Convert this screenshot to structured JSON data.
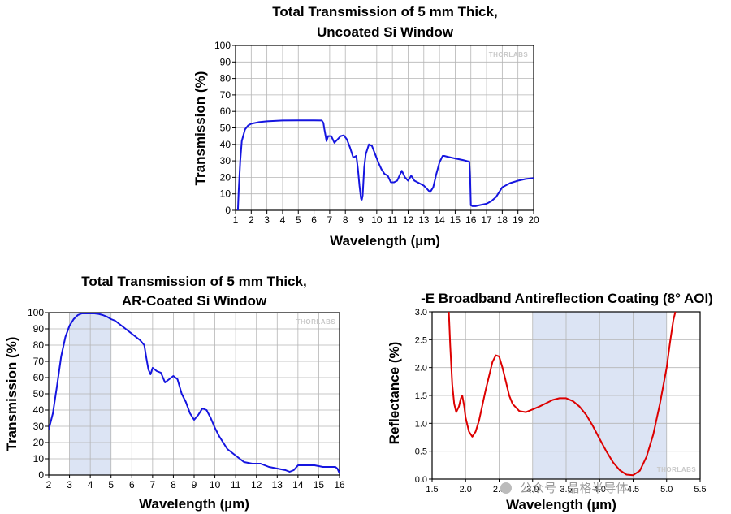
{
  "chart_data": [
    {
      "id": "c1",
      "type": "line",
      "title_lines": [
        "Total Transmission of 5 mm Thick,",
        "Uncoated Si Window"
      ],
      "xlabel": "Wavelength (µm)",
      "ylabel": "Transmission (%)",
      "xlim": [
        1,
        20
      ],
      "ylim": [
        0,
        100
      ],
      "xticks": [
        1,
        2,
        3,
        4,
        5,
        6,
        7,
        8,
        9,
        10,
        11,
        12,
        13,
        14,
        15,
        16,
        17,
        18,
        19,
        20
      ],
      "yticks": [
        0,
        10,
        20,
        30,
        40,
        50,
        60,
        70,
        80,
        90,
        100
      ],
      "grid": true,
      "watermark": "THORLABS",
      "series": [
        {
          "name": "Uncoated Si",
          "color": "#1515e0",
          "x": [
            1.1,
            1.15,
            1.2,
            1.3,
            1.4,
            1.6,
            1.8,
            2.0,
            2.5,
            3,
            4,
            5,
            6,
            6.5,
            6.6,
            6.65,
            6.8,
            6.9,
            7.1,
            7.3,
            7.5,
            7.7,
            7.9,
            8.1,
            8.3,
            8.5,
            8.7,
            8.8,
            8.9,
            9.0,
            9.05,
            9.1,
            9.2,
            9.3,
            9.5,
            9.7,
            9.9,
            10.1,
            10.3,
            10.5,
            10.7,
            10.9,
            11.1,
            11.3,
            11.5,
            11.6,
            11.8,
            12.0,
            12.2,
            12.4,
            12.6,
            12.8,
            13.0,
            13.2,
            13.4,
            13.6,
            13.8,
            14.0,
            14.2,
            14.3,
            14.5,
            15.0,
            15.5,
            15.9,
            15.95,
            16.0,
            16.1,
            16.3,
            16.5,
            17.0,
            17.3,
            17.6,
            17.8,
            18.0,
            18.5,
            19.0,
            19.5,
            20.0
          ],
          "y": [
            0,
            0,
            12,
            30,
            42,
            49,
            51.5,
            52.5,
            53.5,
            54,
            54.5,
            54.6,
            54.6,
            54.5,
            53,
            50,
            42,
            45,
            45,
            41,
            43,
            45,
            45.5,
            43,
            38,
            32,
            33,
            25,
            15,
            7,
            6.5,
            9,
            26,
            34,
            40,
            39,
            34,
            29,
            25,
            22,
            21,
            17,
            17,
            18,
            22,
            24,
            20,
            18,
            21,
            18,
            17,
            16,
            15,
            13,
            11,
            14,
            22,
            29,
            33,
            33,
            32.5,
            31.5,
            30.5,
            29.5,
            20,
            3,
            2.5,
            2.5,
            3,
            4,
            5.5,
            8,
            11,
            14,
            16.5,
            18,
            19,
            19.5
          ]
        }
      ]
    },
    {
      "id": "c2",
      "type": "line",
      "title_lines": [
        "Total Transmission of 5 mm Thick,",
        "AR-Coated Si Window"
      ],
      "xlabel": "Wavelength (µm)",
      "ylabel": "Transmission (%)",
      "xlim": [
        2,
        16
      ],
      "ylim": [
        0,
        100
      ],
      "xticks": [
        2,
        3,
        4,
        5,
        6,
        7,
        8,
        9,
        10,
        11,
        12,
        13,
        14,
        15,
        16
      ],
      "yticks": [
        0,
        10,
        20,
        30,
        40,
        50,
        60,
        70,
        80,
        90,
        100
      ],
      "grid": true,
      "watermark": "THORLABS",
      "shaded_band": [
        3,
        5
      ],
      "series": [
        {
          "name": "AR-Coated Si",
          "color": "#1515e0",
          "x": [
            2.0,
            2.2,
            2.4,
            2.6,
            2.8,
            3.0,
            3.2,
            3.4,
            3.6,
            3.8,
            4.0,
            4.2,
            4.4,
            4.6,
            4.8,
            5.0,
            5.2,
            5.4,
            5.6,
            5.8,
            6.0,
            6.2,
            6.4,
            6.6,
            6.7,
            6.8,
            6.9,
            7.0,
            7.2,
            7.4,
            7.6,
            7.8,
            8.0,
            8.2,
            8.4,
            8.6,
            8.8,
            9.0,
            9.2,
            9.4,
            9.6,
            9.8,
            10.0,
            10.2,
            10.4,
            10.6,
            10.8,
            11.0,
            11.4,
            11.8,
            12.2,
            12.6,
            13.0,
            13.4,
            13.6,
            13.8,
            14.0,
            14.4,
            14.8,
            15.2,
            15.6,
            15.8,
            15.9,
            16.0
          ],
          "y": [
            28,
            38,
            55,
            73,
            85,
            92,
            96,
            98.5,
            99.5,
            99.5,
            99.5,
            99.5,
            99.2,
            98.5,
            97.5,
            96,
            95,
            93,
            91,
            89,
            87,
            85,
            83,
            80,
            72,
            65,
            62,
            66,
            64,
            63,
            57,
            59,
            61,
            59,
            50,
            45,
            38,
            34,
            37,
            41,
            40,
            35,
            29,
            24,
            20,
            16,
            14,
            12,
            8,
            7,
            7,
            5,
            4,
            3,
            2,
            3,
            6,
            6,
            6,
            5,
            5,
            5,
            4,
            1
          ]
        }
      ]
    },
    {
      "id": "c3",
      "type": "line",
      "title_lines": [
        "-E Broadband Antireflection Coating (8° AOI)"
      ],
      "xlabel": "Wavelength (µm)",
      "ylabel": "Reflectance (%)",
      "xlim": [
        1.5,
        5.5
      ],
      "ylim": [
        0,
        3.0
      ],
      "xticks": [
        1.5,
        2.0,
        2.5,
        3.0,
        3.5,
        4.0,
        4.5,
        5.0,
        5.5
      ],
      "xtick_labels": [
        "1.5",
        "2.0",
        "2.5",
        "3.0",
        "3.5",
        "4.0",
        "4.5",
        "5.0",
        "5.5"
      ],
      "yticks": [
        0,
        0.5,
        1.0,
        1.5,
        2.0,
        2.5,
        3.0
      ],
      "ytick_labels": [
        "0.0",
        "0.5",
        "1.0",
        "1.5",
        "2.0",
        "2.5",
        "3.0"
      ],
      "grid": true,
      "watermark": "THORLABS",
      "shaded_band": [
        3.0,
        5.0
      ],
      "series": [
        {
          "name": "-E Coating",
          "color": "#dd0000",
          "x": [
            1.75,
            1.77,
            1.8,
            1.83,
            1.86,
            1.9,
            1.93,
            1.95,
            1.98,
            2.0,
            2.05,
            2.1,
            2.15,
            2.2,
            2.3,
            2.4,
            2.45,
            2.5,
            2.55,
            2.6,
            2.65,
            2.7,
            2.8,
            2.9,
            3.0,
            3.1,
            3.2,
            3.3,
            3.4,
            3.5,
            3.6,
            3.7,
            3.8,
            3.9,
            4.0,
            4.1,
            4.2,
            4.3,
            4.4,
            4.5,
            4.6,
            4.7,
            4.8,
            4.9,
            5.0,
            5.05,
            5.1,
            5.13
          ],
          "y": [
            3.0,
            2.4,
            1.7,
            1.35,
            1.2,
            1.3,
            1.45,
            1.5,
            1.3,
            1.1,
            0.85,
            0.76,
            0.85,
            1.05,
            1.6,
            2.1,
            2.22,
            2.2,
            2.0,
            1.75,
            1.5,
            1.35,
            1.22,
            1.2,
            1.25,
            1.3,
            1.36,
            1.42,
            1.45,
            1.45,
            1.4,
            1.3,
            1.15,
            0.95,
            0.72,
            0.5,
            0.3,
            0.16,
            0.08,
            0.07,
            0.15,
            0.4,
            0.8,
            1.35,
            2.0,
            2.45,
            2.85,
            3.0
          ]
        }
      ]
    }
  ],
  "footer_watermark": "公众号 · 晶格半导体"
}
